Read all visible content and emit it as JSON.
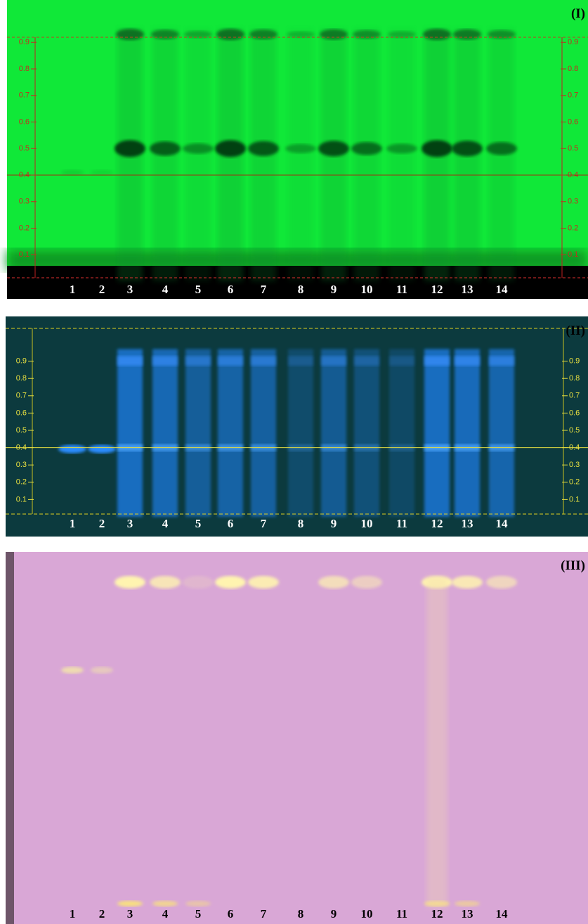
{
  "panels": [
    {
      "label": "(I)",
      "lanes": [
        "1",
        "2",
        "3",
        "4",
        "5",
        "6",
        "7",
        "8",
        "9",
        "10",
        "11",
        "12",
        "13",
        "14"
      ],
      "rf_ticks": [
        0.1,
        0.2,
        0.3,
        0.4,
        0.5,
        0.6,
        0.7,
        0.8,
        0.9
      ]
    },
    {
      "label": "(II)",
      "lanes": [
        "1",
        "2",
        "3",
        "4",
        "5",
        "6",
        "7",
        "8",
        "9",
        "10",
        "11",
        "12",
        "13",
        "14"
      ],
      "rf_ticks": [
        0.1,
        0.2,
        0.3,
        0.4,
        0.5,
        0.6,
        0.7,
        0.8,
        0.9
      ]
    },
    {
      "label": "(III)",
      "lanes": [
        "1",
        "2",
        "3",
        "4",
        "5",
        "6",
        "7",
        "8",
        "9",
        "10",
        "11",
        "12",
        "13",
        "14"
      ]
    }
  ]
}
